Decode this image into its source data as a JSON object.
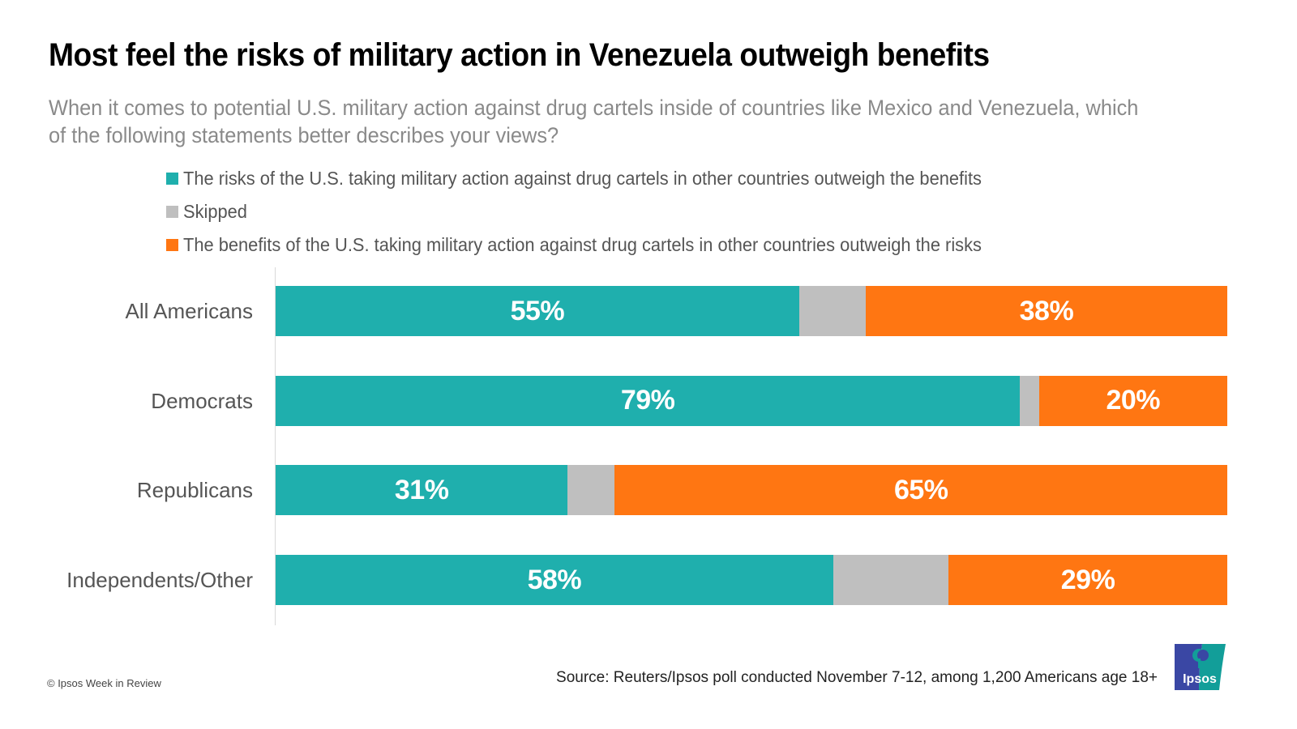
{
  "title": "Most feel the risks of military action in Venezuela outweigh benefits",
  "subtitle": "When it comes to potential U.S. military action against drug cartels inside of countries like Mexico and Venezuela, which of the following statements better describes your views?",
  "legend": [
    {
      "label": "The risks of the U.S. taking military action against drug cartels in other countries outweigh the benefits",
      "color": "#1fafad"
    },
    {
      "label": "Skipped",
      "color": "#bfbfbf"
    },
    {
      "label": "The benefits of the U.S. taking military action against drug cartels in other countries outweigh the risks",
      "color": "#ff7612"
    }
  ],
  "chart_data": {
    "type": "bar",
    "orientation": "horizontal",
    "stacked": true,
    "title": "Most feel the risks of military action in Venezuela outweigh benefits",
    "subtitle": "When it comes to potential U.S. military action against drug cartels inside of countries like Mexico and Venezuela, which of the following statements better describes your views?",
    "xlabel": "",
    "ylabel": "",
    "xlim": [
      0,
      100
    ],
    "grid": false,
    "legend_position": "top",
    "categories": [
      "All Americans",
      "Democrats",
      "Republicans",
      "Independents/Other"
    ],
    "series": [
      {
        "name": "The risks of the U.S. taking military action against drug cartels in other countries outweigh the benefits",
        "color": "#1fafad",
        "values": [
          55,
          79,
          31,
          58
        ],
        "labels": [
          "55%",
          "79%",
          "31%",
          "58%"
        ]
      },
      {
        "name": "Skipped",
        "color": "#bfbfbf",
        "values": [
          7,
          2,
          5,
          12
        ],
        "labels": [
          "",
          "",
          "",
          ""
        ]
      },
      {
        "name": "The benefits of the U.S. taking military action against drug cartels in other countries outweigh the risks",
        "color": "#ff7612",
        "values": [
          38,
          20,
          65,
          29
        ],
        "labels": [
          "38%",
          "20%",
          "65%",
          "29%"
        ]
      }
    ]
  },
  "footer": {
    "copyright": "© Ipsos Week in Review",
    "source": "Source: Reuters/Ipsos poll conducted November 7-12, among 1,200 Americans age 18+",
    "logo_text": "Ipsos",
    "logo_colors": {
      "left": "#3a47a4",
      "right": "#129e99"
    }
  }
}
